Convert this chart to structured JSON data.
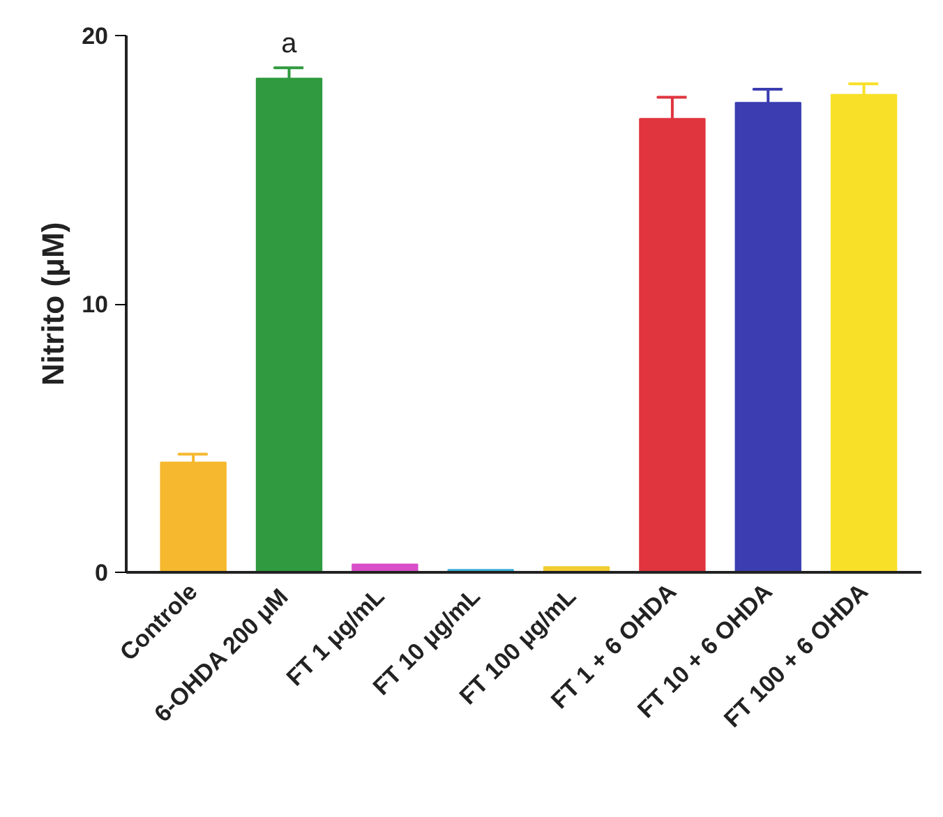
{
  "chart_data": {
    "type": "bar",
    "ylabel": "Nitrito (μM)",
    "categories": [
      "Controle",
      "6-OHDA 200  μM",
      "FT 1  μg/mL",
      "FT 10  μg/mL",
      "FT 100  μg/mL",
      "FT 1 + 6 OHDA",
      "FT 10 + 6 OHDA",
      "FT 100 + 6 OHDA"
    ],
    "values": [
      4.1,
      18.4,
      0.3,
      0.1,
      0.2,
      16.9,
      17.5,
      17.8
    ],
    "errors": [
      [
        4.1,
        4.4
      ],
      [
        18.4,
        18.8
      ],
      null,
      null,
      null,
      [
        16.9,
        17.7
      ],
      [
        17.5,
        18.0
      ],
      [
        17.8,
        18.2
      ]
    ],
    "colors": [
      "#f5b82e",
      "#2f9a3f",
      "#d84fc8",
      "#3aaed8",
      "#f0cc30",
      "#e0353f",
      "#3b3db0",
      "#f8e028"
    ],
    "ylim": [
      0,
      20
    ],
    "yticks": [
      0,
      10,
      20
    ],
    "grid": false,
    "annotations": [
      "a"
    ]
  }
}
